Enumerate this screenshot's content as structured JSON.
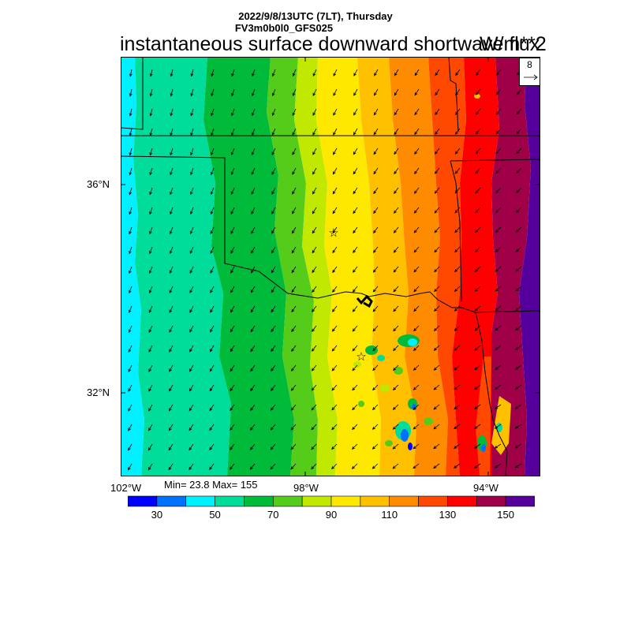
{
  "header": {
    "date_line": "2022/9/8/13UTC (7LT), Thursday",
    "model_line": "FV3m0b0l0_GFS025",
    "title": "instantaneous surface downward shortwave flux",
    "units": "W/m**2"
  },
  "reference_vector": {
    "value": "8"
  },
  "axes": {
    "lat_labels": [
      "36°N",
      "32°N"
    ],
    "lon_labels": [
      "102°W",
      "98°W",
      "94°W"
    ]
  },
  "stats": {
    "text": "Min= 23.8 Max= 155"
  },
  "colorbar": {
    "colors": [
      "#0000ff",
      "#0070ff",
      "#00f0ff",
      "#00dc9a",
      "#00bb3a",
      "#55cc1a",
      "#c0e800",
      "#ffe800",
      "#ffc000",
      "#ff8c00",
      "#ff4800",
      "#ff0000",
      "#a00048",
      "#55009c"
    ],
    "labels": [
      "30",
      "50",
      "70",
      "90",
      "110",
      "130",
      "150"
    ]
  },
  "markers": {
    "star_symbol": "☆"
  }
}
